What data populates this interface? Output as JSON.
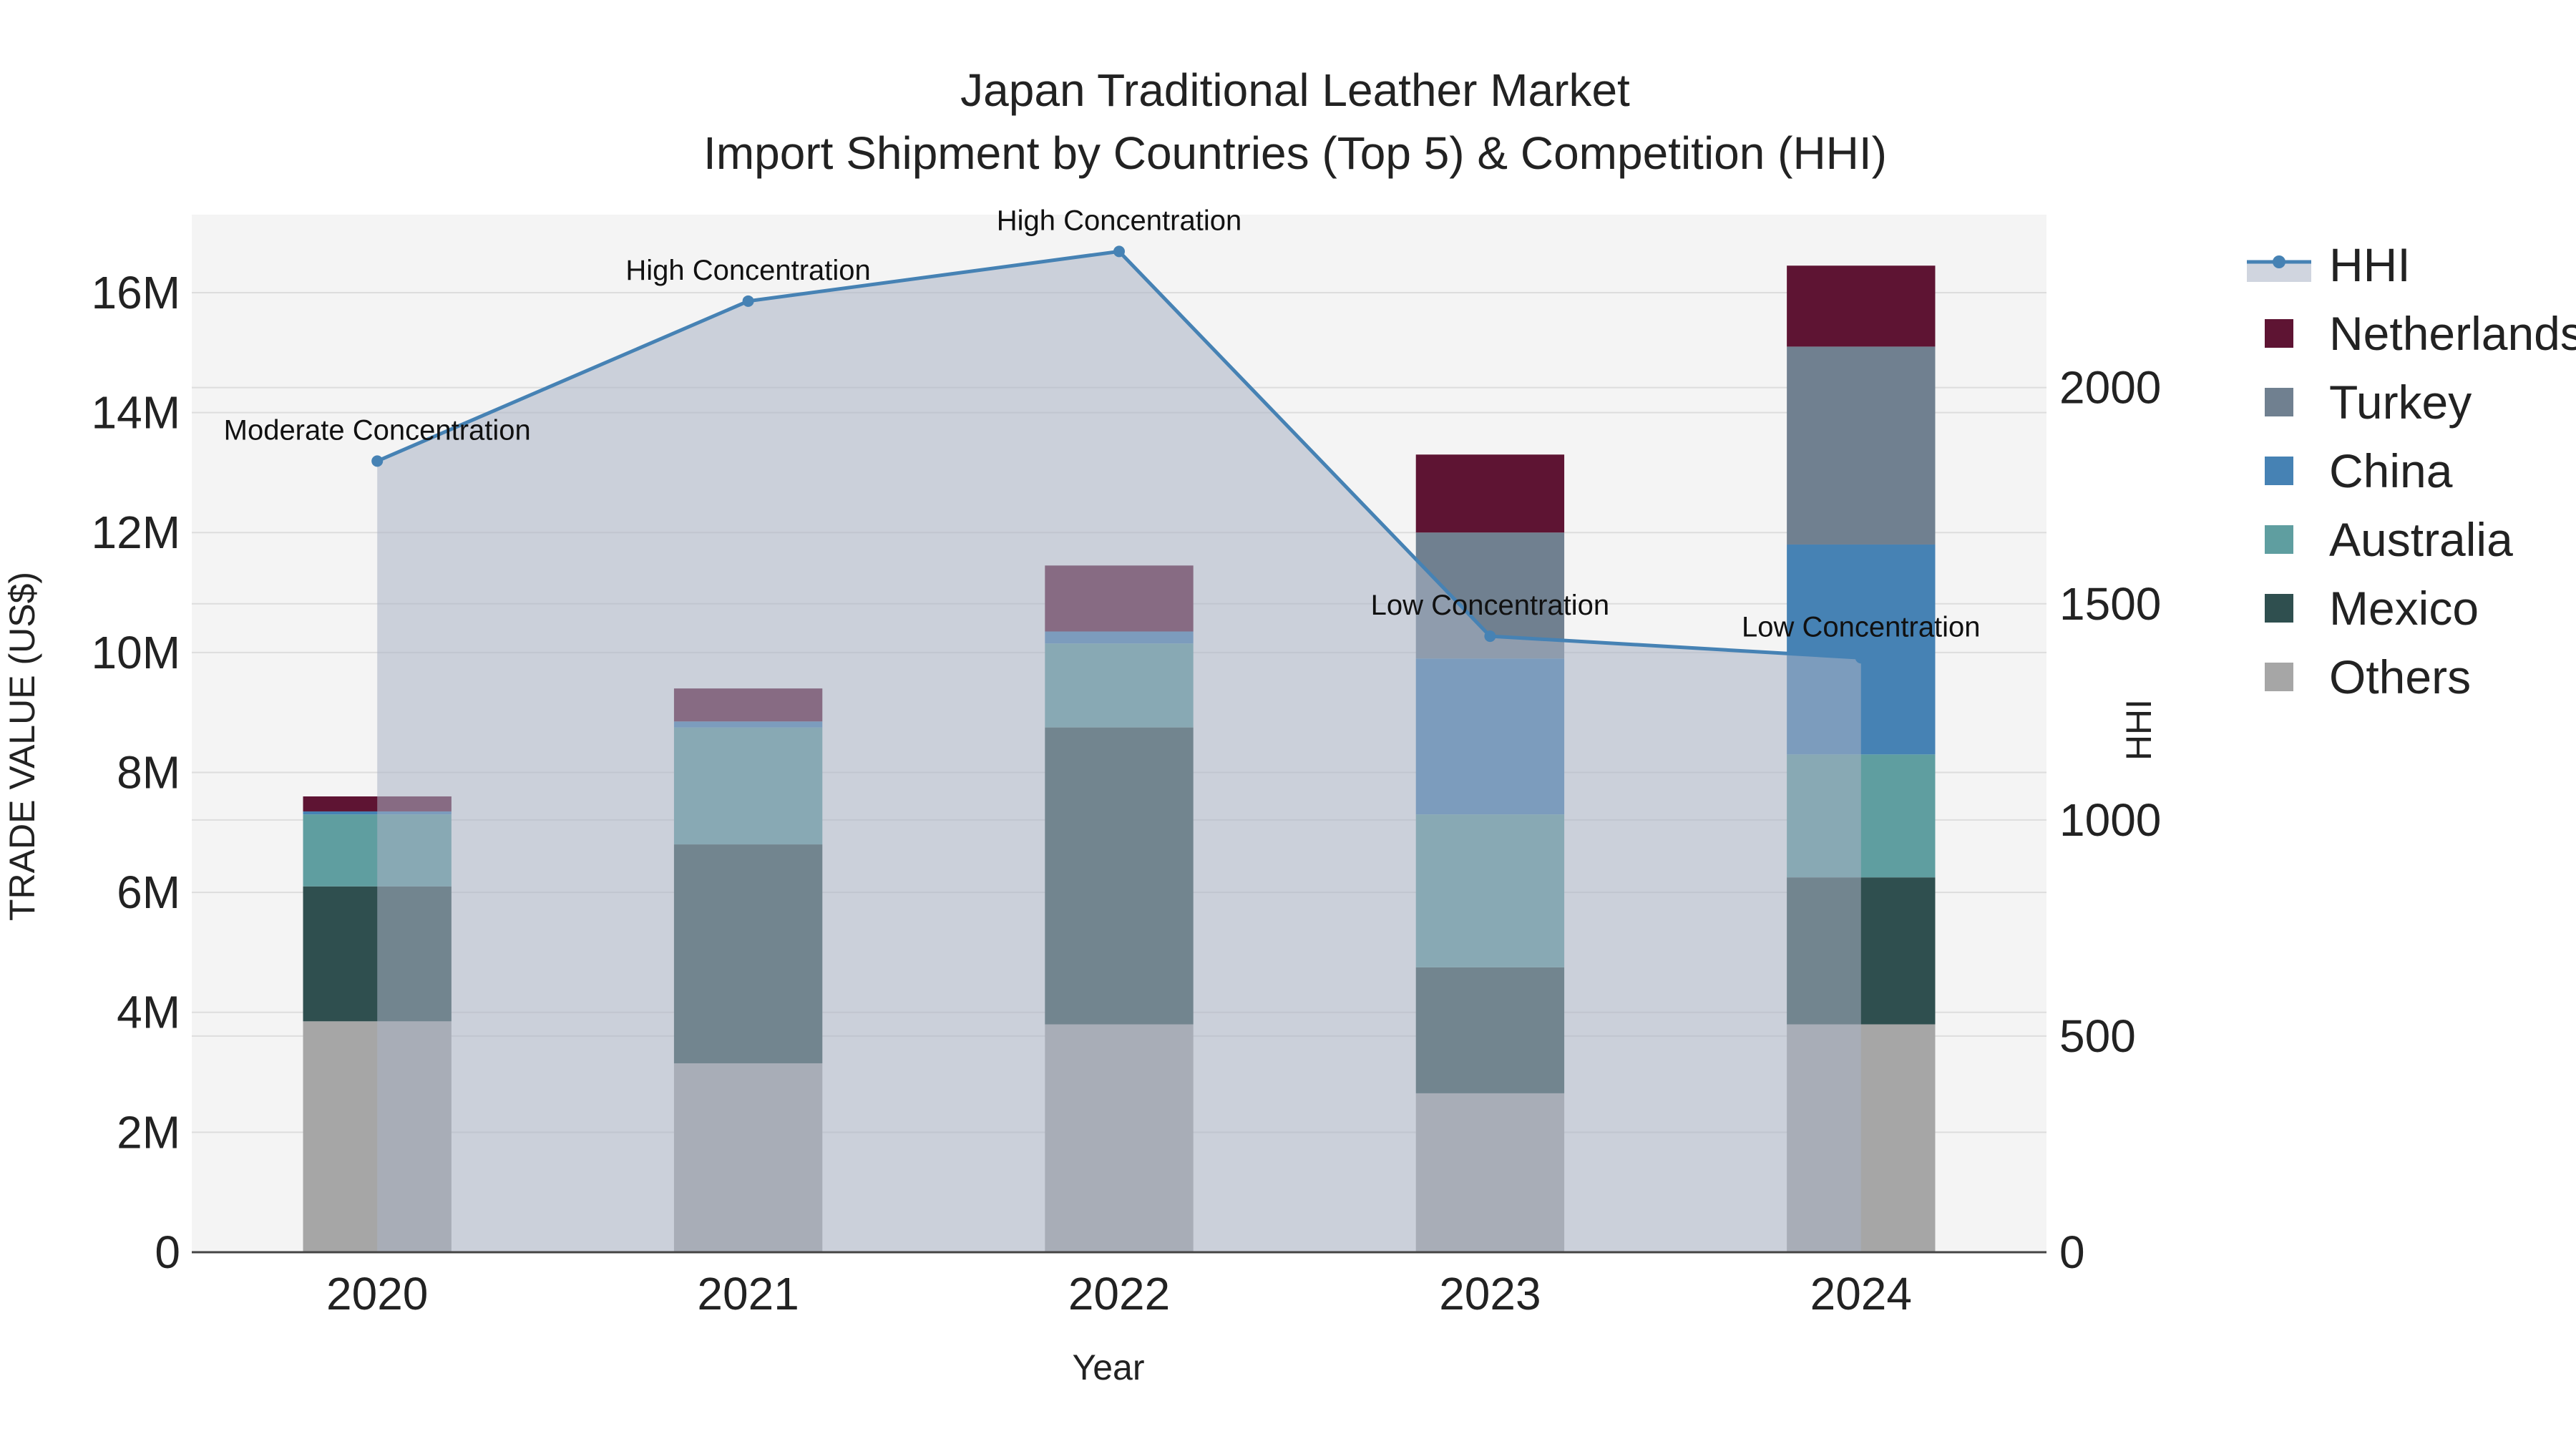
{
  "chart_data": {
    "type": "bar",
    "title": "Japan Traditional Leather Market",
    "subtitle": "Import Shipment by Countries (Top 5) & Competition (HHI)",
    "xlabel": "Year",
    "ylabel": "TRADE VALUE (US$)",
    "y2label": "HHI",
    "categories": [
      "2020",
      "2021",
      "2022",
      "2023",
      "2024"
    ],
    "ylim": [
      0,
      17300000
    ],
    "y2lim": [
      0,
      2400
    ],
    "yticks": [
      0,
      2000000,
      4000000,
      6000000,
      8000000,
      10000000,
      12000000,
      14000000,
      16000000
    ],
    "ytick_labels": [
      "0",
      "2M",
      "4M",
      "6M",
      "8M",
      "10M",
      "12M",
      "14M",
      "16M"
    ],
    "y2ticks": [
      0,
      500,
      1000,
      1500,
      2000
    ],
    "y2tick_labels": [
      "0",
      "500",
      "1000",
      "1500",
      "2000"
    ],
    "series": [
      {
        "name": "Others",
        "color": "#A6A6A6",
        "values": [
          3850000,
          3150000,
          3800000,
          2650000,
          3800000
        ]
      },
      {
        "name": "Mexico",
        "color": "#2F4F4F",
        "values": [
          2250000,
          3650000,
          4950000,
          2100000,
          2450000
        ]
      },
      {
        "name": "Australia",
        "color": "#5F9EA0",
        "values": [
          1200000,
          1950000,
          1400000,
          2550000,
          2050000
        ]
      },
      {
        "name": "China",
        "color": "#4682B4",
        "values": [
          50000,
          100000,
          200000,
          2600000,
          3500000
        ]
      },
      {
        "name": "Turkey",
        "color": "#708090",
        "values": [
          0,
          0,
          0,
          2100000,
          3300000
        ]
      },
      {
        "name": "Netherlands",
        "color": "#5E1433",
        "values": [
          250000,
          550000,
          1100000,
          1300000,
          1350000
        ]
      }
    ],
    "hhi": {
      "name": "HHI",
      "color": "#4682B4",
      "values": [
        1830,
        2200,
        2315,
        1425,
        1375
      ],
      "annotations": [
        "Moderate Concentration",
        "High Concentration",
        "High Concentration",
        "Low Concentration",
        "Low Concentration"
      ]
    },
    "legend_order": [
      "HHI",
      "Netherlands",
      "Turkey",
      "China",
      "Australia",
      "Mexico",
      "Others"
    ],
    "legend_position": "top-right",
    "grid": true
  }
}
